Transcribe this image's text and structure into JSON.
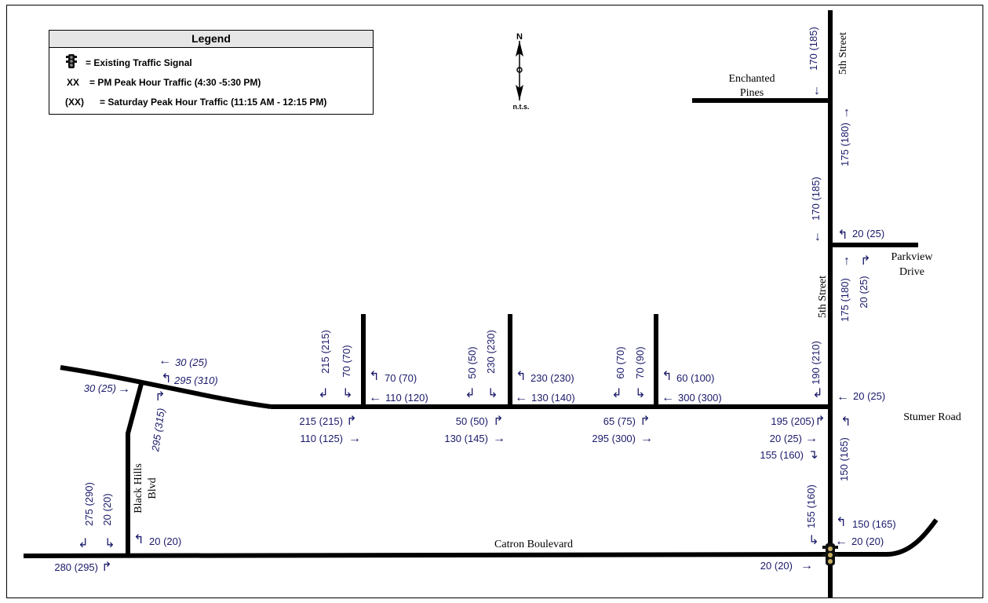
{
  "legend": {
    "title": "Legend",
    "items": [
      {
        "key": "",
        "icon": "traffic-signal-icon",
        "desc": "= Existing Traffic Signal"
      },
      {
        "key": "XX",
        "desc": "= PM Peak Hour Traffic (4:30 -5:30 PM)"
      },
      {
        "key": "(XX)",
        "desc": "= Saturday Peak Hour Traffic (11:15 AM - 12:15 PM)"
      }
    ]
  },
  "north_arrow": {
    "letter": "N",
    "scale": "n.t.s."
  },
  "streets": {
    "enchanted_1": "Enchanted",
    "enchanted_2": "Pines",
    "fifth_top": "5th Street",
    "fifth_mid": "5th Street",
    "parkview_1": "Parkview",
    "parkview_2": "Drive",
    "stumer": "Stumer Road",
    "black_hills_1": "Black Hills",
    "black_hills_2": "Blvd",
    "catron": "Catron Boulevard"
  },
  "volumes": {
    "v1": "170 (185)",
    "v2": "175 (180)",
    "v3": "170 (185)",
    "v4": "20 (25)",
    "v5": "175 (180)",
    "v6": "20 (25)",
    "v7": "190 (210)",
    "v8": "20 (25)",
    "v9": "195 (205)",
    "v10": "20 (25)",
    "v11": "155 (160)",
    "v12": "150 (165)",
    "v13": "155 (160)",
    "v14": "150 (165)",
    "v15": "20 (20)",
    "v16": "20 (20)",
    "v17": "30 (25)",
    "v18": "295 (310)",
    "v19": "30 (25)",
    "v20": "295 (315)",
    "v21": "275 (290)",
    "v22": "20 (20)",
    "v23": "20 (20)",
    "v24": "280 (295)",
    "v25": "215 (215)",
    "v26": "70 (70)",
    "v27": "70 (70)",
    "v28": "110 (120)",
    "v29": "215 (215)",
    "v30": "110 (125)",
    "v31": "50 (50)",
    "v32": "230 (230)",
    "v33": "230 (230)",
    "v34": "130 (140)",
    "v35": "50 (50)",
    "v36": "130 (145)",
    "v37": "60 (70)",
    "v38": "70 (90)",
    "v39": "60 (100)",
    "v40": "300 (300)",
    "v41": "65 (75)",
    "v42": "295 (300)"
  },
  "colors": {
    "road": "#000000",
    "volume_text": "#1a1a6a",
    "legend_header": "#e6e6e6"
  }
}
